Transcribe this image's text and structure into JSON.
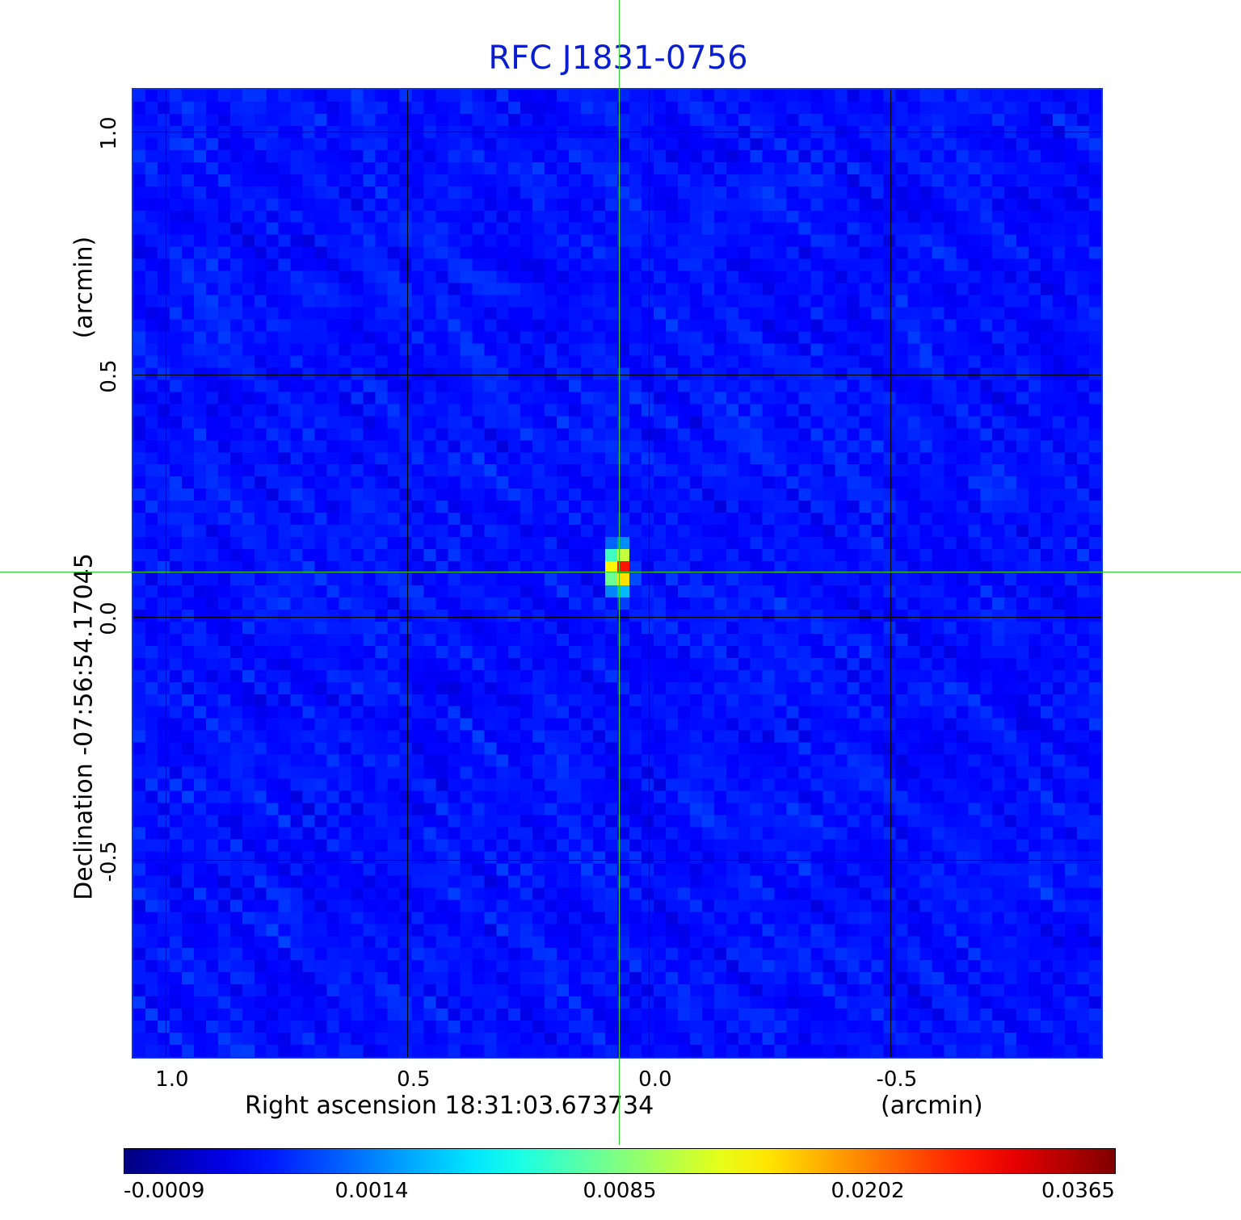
{
  "title": "RFC J1831-0756",
  "xlabel": "Right ascension  18:31:03.673734",
  "xunit": "(arcmin)",
  "ylabel": "Declination  -07:56:54.17045",
  "yunit": "(arcmin)",
  "colormap": "jet",
  "chart_data": {
    "type": "heatmap",
    "title": "RFC J1831-0756",
    "xlabel": "Right ascension  18:31:03.673734",
    "ylabel": "Declination  -07:56:54.17045",
    "x_ticks": [
      "1.0",
      "0.5",
      "0.0",
      "-0.5"
    ],
    "x_tick_values": [
      1.0,
      0.5,
      0.0,
      -0.5
    ],
    "y_ticks": [
      "1.0",
      "0.5",
      "0.0",
      "-0.5"
    ],
    "y_tick_values": [
      1.0,
      0.5,
      0.0,
      -0.5
    ],
    "xlim": [
      1.07,
      -0.94
    ],
    "ylim": [
      -0.91,
      1.09
    ],
    "grid": true,
    "colorbar_ticks": [
      "-0.0009",
      "0.0014",
      "0.0085",
      "0.0202",
      "0.0365"
    ],
    "colorbar_range": [
      -0.0009,
      0.0365
    ],
    "source_peak": {
      "x": 0.062,
      "y": 0.1,
      "value": 0.0365
    },
    "crosshair": {
      "x": 0.062,
      "y": 0.1
    },
    "colors": [
      "#00008f",
      "#0000ff",
      "#00ffff",
      "#ffff00",
      "#ff0000",
      "#800000"
    ]
  }
}
